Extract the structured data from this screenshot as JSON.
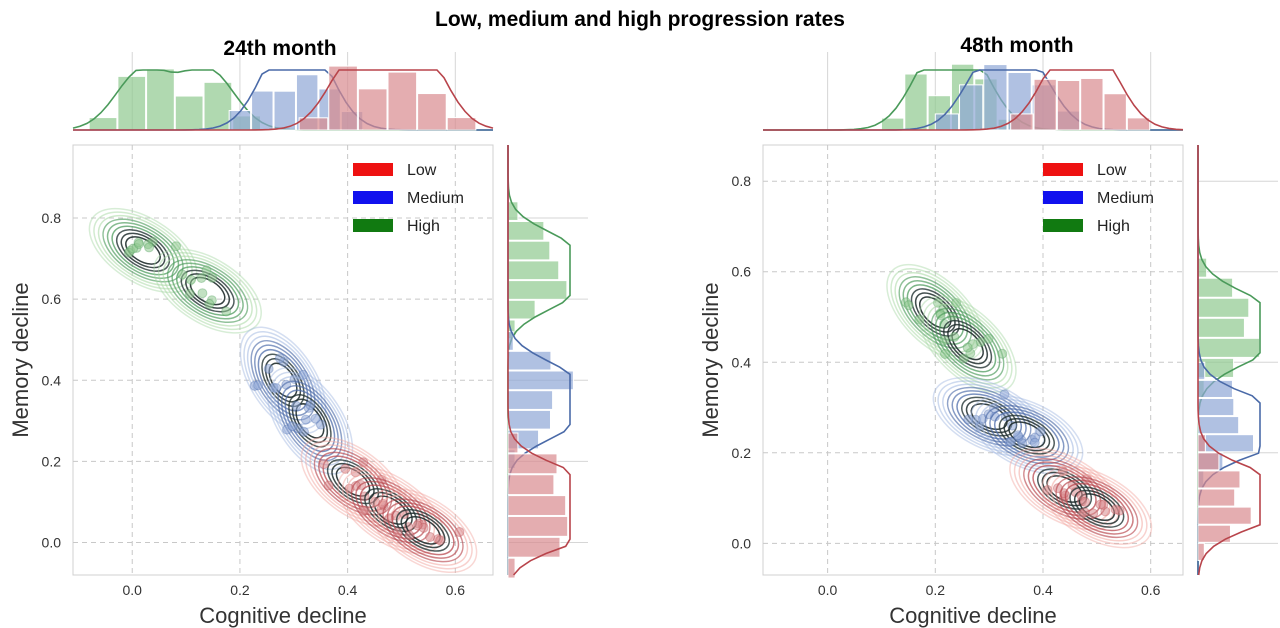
{
  "title": "Low, medium and high progression rates",
  "colors": {
    "Low": "#d62728",
    "Medium": "#1f3fbf",
    "High": "#1a7a1a",
    "low_hist": "#d98a8e",
    "medium_hist": "#8ea6d6",
    "high_hist": "#8fc98f",
    "low_line": "#b8444b",
    "medium_line": "#4a6aa8",
    "high_line": "#4a9a5a"
  },
  "chart_data": [
    {
      "type": "scatter",
      "title": "24th month",
      "xlabel": "Cognitive decline",
      "ylabel": "Memory decline",
      "xlim": [
        -0.11,
        0.67
      ],
      "ylim": [
        -0.08,
        0.98
      ],
      "xticks": [
        "0.0",
        "0.2",
        "0.4",
        "0.6"
      ],
      "yticks": [
        "0.0",
        "0.2",
        "0.4",
        "0.6",
        "0.8"
      ],
      "grid": true,
      "legend_position": "top-right",
      "legend": [
        "Low",
        "Medium",
        "High"
      ],
      "series": [
        {
          "name": "High",
          "centers": [
            [
              0.02,
              0.72
            ],
            [
              0.14,
              0.62
            ]
          ]
        },
        {
          "name": "Medium",
          "centers": [
            [
              0.28,
              0.4
            ],
            [
              0.33,
              0.3
            ]
          ]
        },
        {
          "name": "Low",
          "centers": [
            [
              0.41,
              0.15
            ],
            [
              0.48,
              0.08
            ],
            [
              0.54,
              0.03
            ]
          ]
        }
      ]
    },
    {
      "type": "scatter",
      "title": "48th month",
      "xlabel": "Cognitive decline",
      "ylabel": "Memory decline",
      "xlim": [
        -0.12,
        0.66
      ],
      "ylim": [
        -0.07,
        0.88
      ],
      "xticks": [
        "0.0",
        "0.2",
        "0.4",
        "0.6"
      ],
      "yticks": [
        "0.0",
        "0.2",
        "0.4",
        "0.6",
        "0.8"
      ],
      "grid": true,
      "legend_position": "top-right",
      "legend": [
        "Low",
        "Medium",
        "High"
      ],
      "series": [
        {
          "name": "High",
          "centers": [
            [
              0.2,
              0.51
            ],
            [
              0.26,
              0.44
            ]
          ]
        },
        {
          "name": "Medium",
          "centers": [
            [
              0.3,
              0.28
            ],
            [
              0.37,
              0.24
            ]
          ]
        },
        {
          "name": "Low",
          "centers": [
            [
              0.44,
              0.12
            ],
            [
              0.5,
              0.08
            ]
          ]
        }
      ]
    }
  ]
}
